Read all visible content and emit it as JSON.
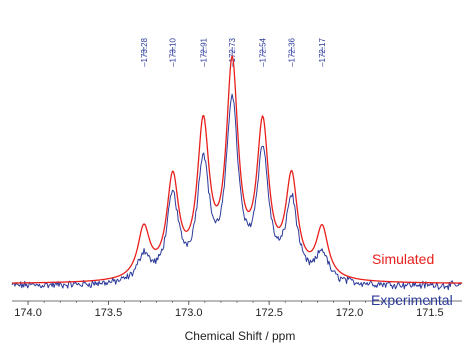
{
  "chart_data": {
    "type": "line",
    "xlabel": "Chemical Shift / ppm",
    "x_reversed": true,
    "xlim": [
      171.3,
      174.1
    ],
    "x_ticks": [
      174.0,
      173.5,
      173.0,
      172.5,
      172.0,
      171.5
    ],
    "x_tick_labels": [
      "174.0",
      "173.5",
      "173.0",
      "172.5",
      "172.0",
      "171.5"
    ],
    "y_axis_shown": false,
    "grid": false,
    "peak_labels": [
      {
        "x": 173.28,
        "text": "–173.28"
      },
      {
        "x": 173.1,
        "text": "–173.10"
      },
      {
        "x": 172.91,
        "text": "–172.91"
      },
      {
        "x": 172.73,
        "text": "–172.73"
      },
      {
        "x": 172.54,
        "text": "–172.54"
      },
      {
        "x": 172.36,
        "text": "–172.36"
      },
      {
        "x": 172.17,
        "text": "–172.17"
      }
    ],
    "series": [
      {
        "name": "Simulated",
        "color": "#e8201c",
        "style": "smooth",
        "peaks": [
          {
            "x": 173.28,
            "height": 0.24
          },
          {
            "x": 173.1,
            "height": 0.47
          },
          {
            "x": 172.91,
            "height": 0.71
          },
          {
            "x": 172.73,
            "height": 1.0
          },
          {
            "x": 172.54,
            "height": 0.71
          },
          {
            "x": 172.36,
            "height": 0.47
          },
          {
            "x": 172.17,
            "height": 0.24
          }
        ]
      },
      {
        "name": "Experimental",
        "color": "#2b3a9a",
        "style": "noisy",
        "peaks": [
          {
            "x": 173.28,
            "height": 0.13
          },
          {
            "x": 173.1,
            "height": 0.4
          },
          {
            "x": 172.91,
            "height": 0.56
          },
          {
            "x": 172.73,
            "height": 0.85
          },
          {
            "x": 172.54,
            "height": 0.6
          },
          {
            "x": 172.36,
            "height": 0.38
          },
          {
            "x": 172.17,
            "height": 0.14
          }
        ]
      }
    ],
    "legend": [
      {
        "text": "Simulated",
        "color": "#e8201c",
        "placement": "right, above baseline"
      },
      {
        "text": "Experimental",
        "color": "#2b3a9a",
        "placement": "right, below baseline"
      }
    ]
  }
}
